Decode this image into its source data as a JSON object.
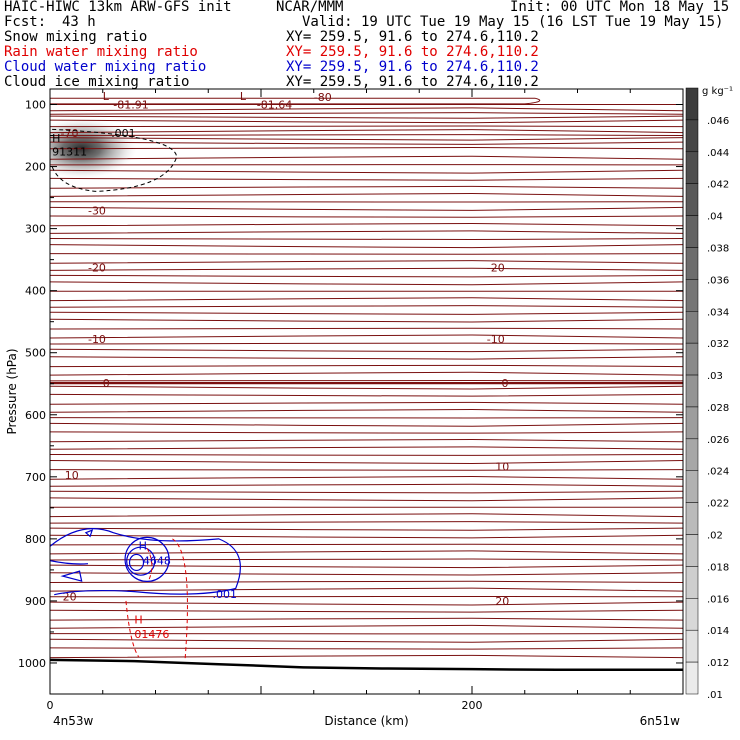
{
  "header": {
    "title": "HAIC-HIWC 13km ARW-GFS init",
    "org": "NCAR/MMM",
    "init": "Init: 00 UTC Mon 18 May 15",
    "fcst_label": "Fcst:",
    "fcst_value": "43 h",
    "valid": "Valid: 19 UTC Tue 19 May 15 (16 LST Tue 19 May 15)"
  },
  "fields": [
    {
      "name": "Snow mixing ratio",
      "xy": "XY= 259.5, 91.6 to 274.6,110.2",
      "color": "#000000"
    },
    {
      "name": "Rain water mixing ratio",
      "xy": "XY= 259.5, 91.6 to 274.6,110.2",
      "color": "#e00000"
    },
    {
      "name": "Cloud water mixing ratio",
      "xy": "XY= 259.5, 91.6 to 274.6,110.2",
      "color": "#0000cc"
    },
    {
      "name": "Cloud ice mixing ratio",
      "xy": "XY= 259.5, 91.6 to 274.6,110.2",
      "color": "#000000"
    }
  ],
  "colorbar": {
    "unit": "g kg⁻¹",
    "labels": [
      ".046",
      ".044",
      ".042",
      ".04",
      ".038",
      ".036",
      ".034",
      ".032",
      ".03",
      ".028",
      ".026",
      ".024",
      ".022",
      ".02",
      ".018",
      ".016",
      ".014",
      ".012",
      ".01"
    ]
  },
  "chart_data": {
    "type": "contour",
    "ylabel": "Pressure (hPa)",
    "xlabel": "Distance (km)",
    "ylim": [
      1050,
      75
    ],
    "xlim": [
      0,
      300
    ],
    "y_ticks": [
      100,
      200,
      300,
      400,
      500,
      600,
      700,
      800,
      900,
      1000
    ],
    "x_ticks": [
      0,
      200
    ],
    "x_tick_labels": [
      "0",
      "200"
    ],
    "x_endpoint_labels": {
      "left": "4n53w",
      "right": "6n51w"
    },
    "temperature_contours": {
      "color": "#7a1010",
      "labels": [
        {
          "text": "-81.91",
          "x": 30,
          "p": 100
        },
        {
          "text": "-81.64",
          "x": 98,
          "p": 100
        },
        {
          "text": "-80",
          "x": 125,
          "p": 88
        },
        {
          "text": "-70",
          "x": 5,
          "p": 146
        },
        {
          "text": "-30",
          "x": 18,
          "p": 271
        },
        {
          "text": "-20",
          "x": 18,
          "p": 363
        },
        {
          "text": "-20",
          "x": 207,
          "p": 363
        },
        {
          "text": "-10",
          "x": 18,
          "p": 478
        },
        {
          "text": "-10",
          "x": 207,
          "p": 478
        },
        {
          "text": "0",
          "x": 25,
          "p": 549
        },
        {
          "text": "0",
          "x": 214,
          "p": 549
        },
        {
          "text": "10",
          "x": 7,
          "p": 697
        },
        {
          "text": "10",
          "x": 211,
          "p": 683
        },
        {
          "text": "20",
          "x": 6,
          "p": 893
        },
        {
          "text": "20",
          "x": 211,
          "p": 900
        }
      ],
      "extrema": [
        {
          "text": "L",
          "x": 25,
          "p": 86
        },
        {
          "text": "L",
          "x": 90,
          "p": 86
        }
      ]
    },
    "cloud_ice": {
      "color": "#000000",
      "labels": [
        {
          "text": ".001",
          "x": 29,
          "p": 146
        }
      ],
      "extrema": [
        {
          "text": "H",
          "x": 1,
          "p": 154
        },
        {
          "text": "91311",
          "x": 1,
          "p": 176
        }
      ]
    },
    "snow_shading": {
      "max_center": {
        "x": 15,
        "p": 211
      },
      "max_value": 0.046
    },
    "cloud_water": {
      "color": "#0000cc",
      "labels": [
        {
          "text": ".001",
          "x": 77,
          "p": 889
        }
      ],
      "extrema": [
        {
          "text": "H",
          "x": 42,
          "p": 811
        },
        {
          "text": "4648",
          "x": 44,
          "p": 835
        }
      ]
    },
    "rain_water": {
      "color": "#e00000",
      "extrema": [
        {
          "text": "H",
          "x": 40,
          "p": 930
        },
        {
          "text": "01476",
          "x": 40,
          "p": 953
        }
      ]
    },
    "terrain_pressure": {
      "x": [
        0,
        40,
        80,
        120,
        160,
        200,
        240,
        280,
        300
      ],
      "p": [
        995,
        997,
        1002,
        1007,
        1009,
        1010,
        1011,
        1011,
        1011
      ]
    }
  }
}
